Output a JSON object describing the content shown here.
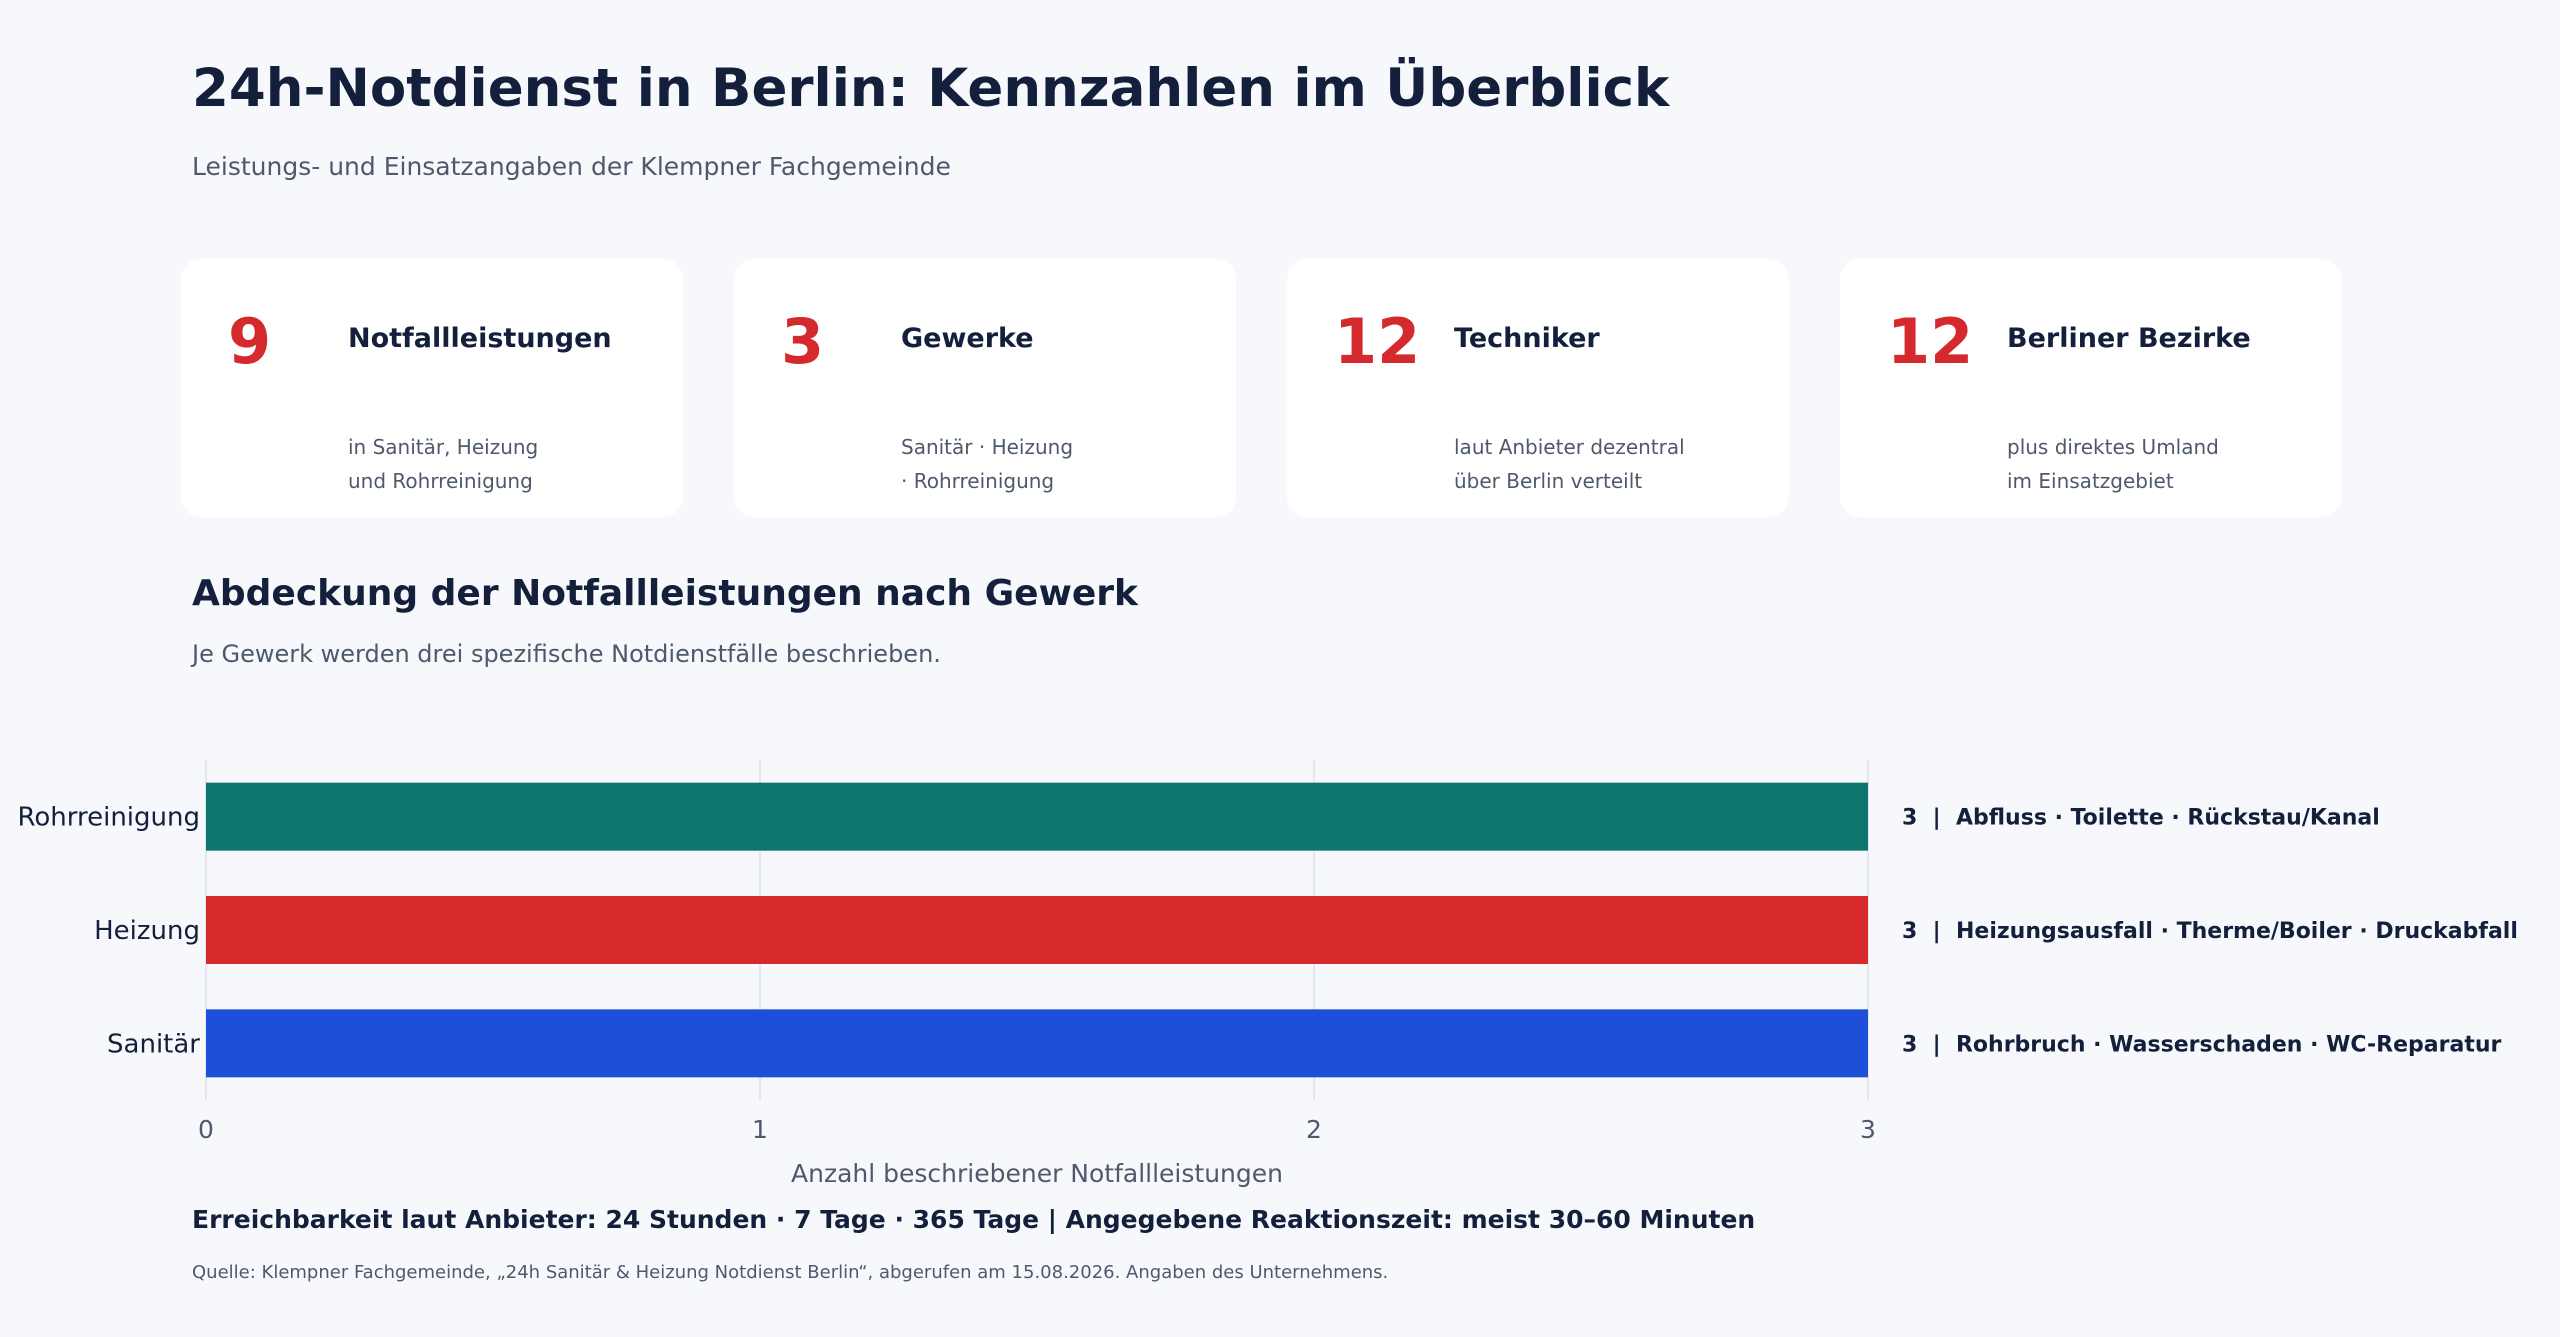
{
  "header": {
    "title": "24h-Notdienst in Berlin: Kennzahlen im Überblick",
    "subtitle": "Leistungs- und Einsatzangaben der Klempner Fachgemeinde"
  },
  "kpis": [
    {
      "value": "9",
      "label": "Notfallleistungen",
      "desc": [
        "in Sanitär, Heizung",
        "und Rohrreinigung"
      ]
    },
    {
      "value": "3",
      "label": "Gewerke",
      "desc": [
        "Sanitär · Heizung",
        "· Rohrreinigung"
      ]
    },
    {
      "value": "12",
      "label": "Techniker",
      "desc": [
        "laut Anbieter dezentral",
        "über Berlin verteilt"
      ]
    },
    {
      "value": "12",
      "label": "Berliner Bezirke",
      "desc": [
        "plus direktes Umland",
        "im Einsatzgebiet"
      ]
    }
  ],
  "section": {
    "title": "Abdeckung der Notfallleistungen nach Gewerk",
    "subtitle": "Je Gewerk werden drei spezifische Notdienstfälle beschrieben."
  },
  "chart_data": {
    "type": "bar",
    "orientation": "horizontal",
    "categories": [
      "Rohrreinigung",
      "Heizung",
      "Sanitär"
    ],
    "values": [
      3,
      3,
      3
    ],
    "colors": [
      "#0f766e",
      "#d6292a",
      "#1d4fd8"
    ],
    "annotations": [
      "3  |  Abfluss · Toilette · Rückstau/Kanal",
      "3  |  Heizungsausfall · Therme/Boiler · Druckabfall",
      "3  |  Rohrbruch · Wasserschaden · WC-Reparatur"
    ],
    "xlabel": "Anzahl beschriebener Notfallleistungen",
    "ylabel": "",
    "xlim": [
      0,
      3
    ],
    "xticks": [
      "0",
      "1",
      "2",
      "3"
    ],
    "grid": true
  },
  "footer": {
    "main": "Erreichbarkeit laut Anbieter: 24 Stunden · 7 Tage · 365 Tage | Angegebene Reaktionszeit: meist 30–60 Minuten",
    "source": "Quelle: Klempner Fachgemeinde, „24h Sanitär & Heizung Notdienst Berlin“, abgerufen am 15.08.2026. Angaben des Unternehmens."
  }
}
